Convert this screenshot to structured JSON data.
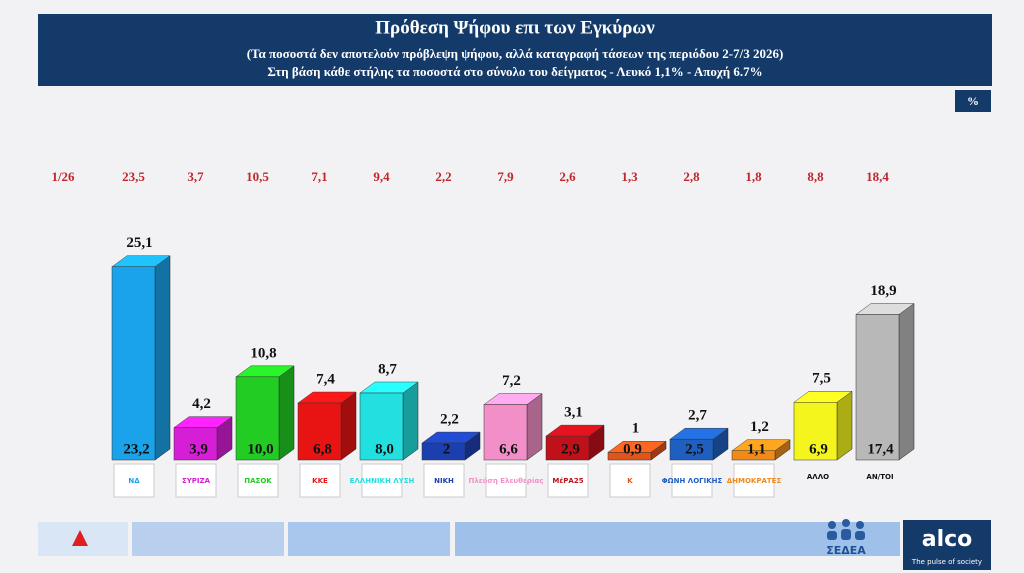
{
  "chart_data": {
    "type": "bar3d",
    "title": "Πρόθεση Ψήφου επι των Εγκύρων",
    "subtitle": "(Τα ποσοστά δεν αποτελούν πρόβλεψη ψήφου, αλλά καταγραφή τάσεων της περιόδου  2-7/3 2026)",
    "note": "Στη βάση κάθε στήλης τα ποσοστά στο σύνολο του δείγματος - Λευκό 1,1% - Αποχή 6.7%",
    "unit_badge": "%",
    "categories": [
      "ΝΔ",
      "ΣΥΡΙΖΑ",
      "ΠΑΣΟΚ",
      "ΚΚΕ",
      "ΕΛΛΗΝΙΚΗ ΛΥΣΗ",
      "ΝΙΚΗ",
      "Πλεύση Ελευθερίας",
      "ΜέΡΑ25",
      "Κ",
      "ΦΩΝΗ ΛΟΓΙΚΗΣ",
      "ΔΗΜΟΚΡΑΤΕΣ",
      "ΑΛΛΟ",
      "ΑΝ/ΤΟΙ"
    ],
    "colors": [
      "#1aa3ea",
      "#d61ed6",
      "#22cc22",
      "#e81414",
      "#22e0e0",
      "#1c3fb0",
      "#f28fc8",
      "#c0101a",
      "#e0551a",
      "#1f5fbf",
      "#f08a1a",
      "#f5f51e",
      "#b8b8b8"
    ],
    "values": [
      25.1,
      4.2,
      10.8,
      7.4,
      8.7,
      2.2,
      7.2,
      3.1,
      1,
      2.7,
      1.2,
      7.5,
      18.9
    ],
    "value_labels": [
      "25,1",
      "4,2",
      "10,8",
      "7,4",
      "8,7",
      "2,2",
      "7,2",
      "3,1",
      "1",
      "2,7",
      "1,2",
      "7,5",
      "18,9"
    ],
    "base_values": [
      23.2,
      3.9,
      10.0,
      6.8,
      8.0,
      2,
      6.6,
      2.9,
      0.9,
      2.5,
      1.1,
      6.9,
      17.4
    ],
    "base_value_labels": [
      "23,2",
      "3,9",
      "10,0",
      "6,8",
      "8,0",
      "2",
      "6,6",
      "2,9",
      "0,9",
      "2,5",
      "1,1",
      "6,9",
      "17,4"
    ],
    "previous_label": "1/26",
    "previous_values": [
      23.5,
      3.7,
      10.5,
      7.1,
      9.4,
      2.2,
      7.9,
      2.6,
      1.3,
      2.8,
      1.8,
      8.8,
      18.4
    ],
    "previous_value_labels": [
      "23,5",
      "3,7",
      "10,5",
      "7,1",
      "9,4",
      "2,2",
      "7,9",
      "2,6",
      "1,3",
      "2,8",
      "1,8",
      "8,8",
      "18,4"
    ]
  },
  "footer": {
    "brand": "ΣΕΔΕΑ",
    "company": "alco",
    "tagline": "The pulse of society"
  }
}
